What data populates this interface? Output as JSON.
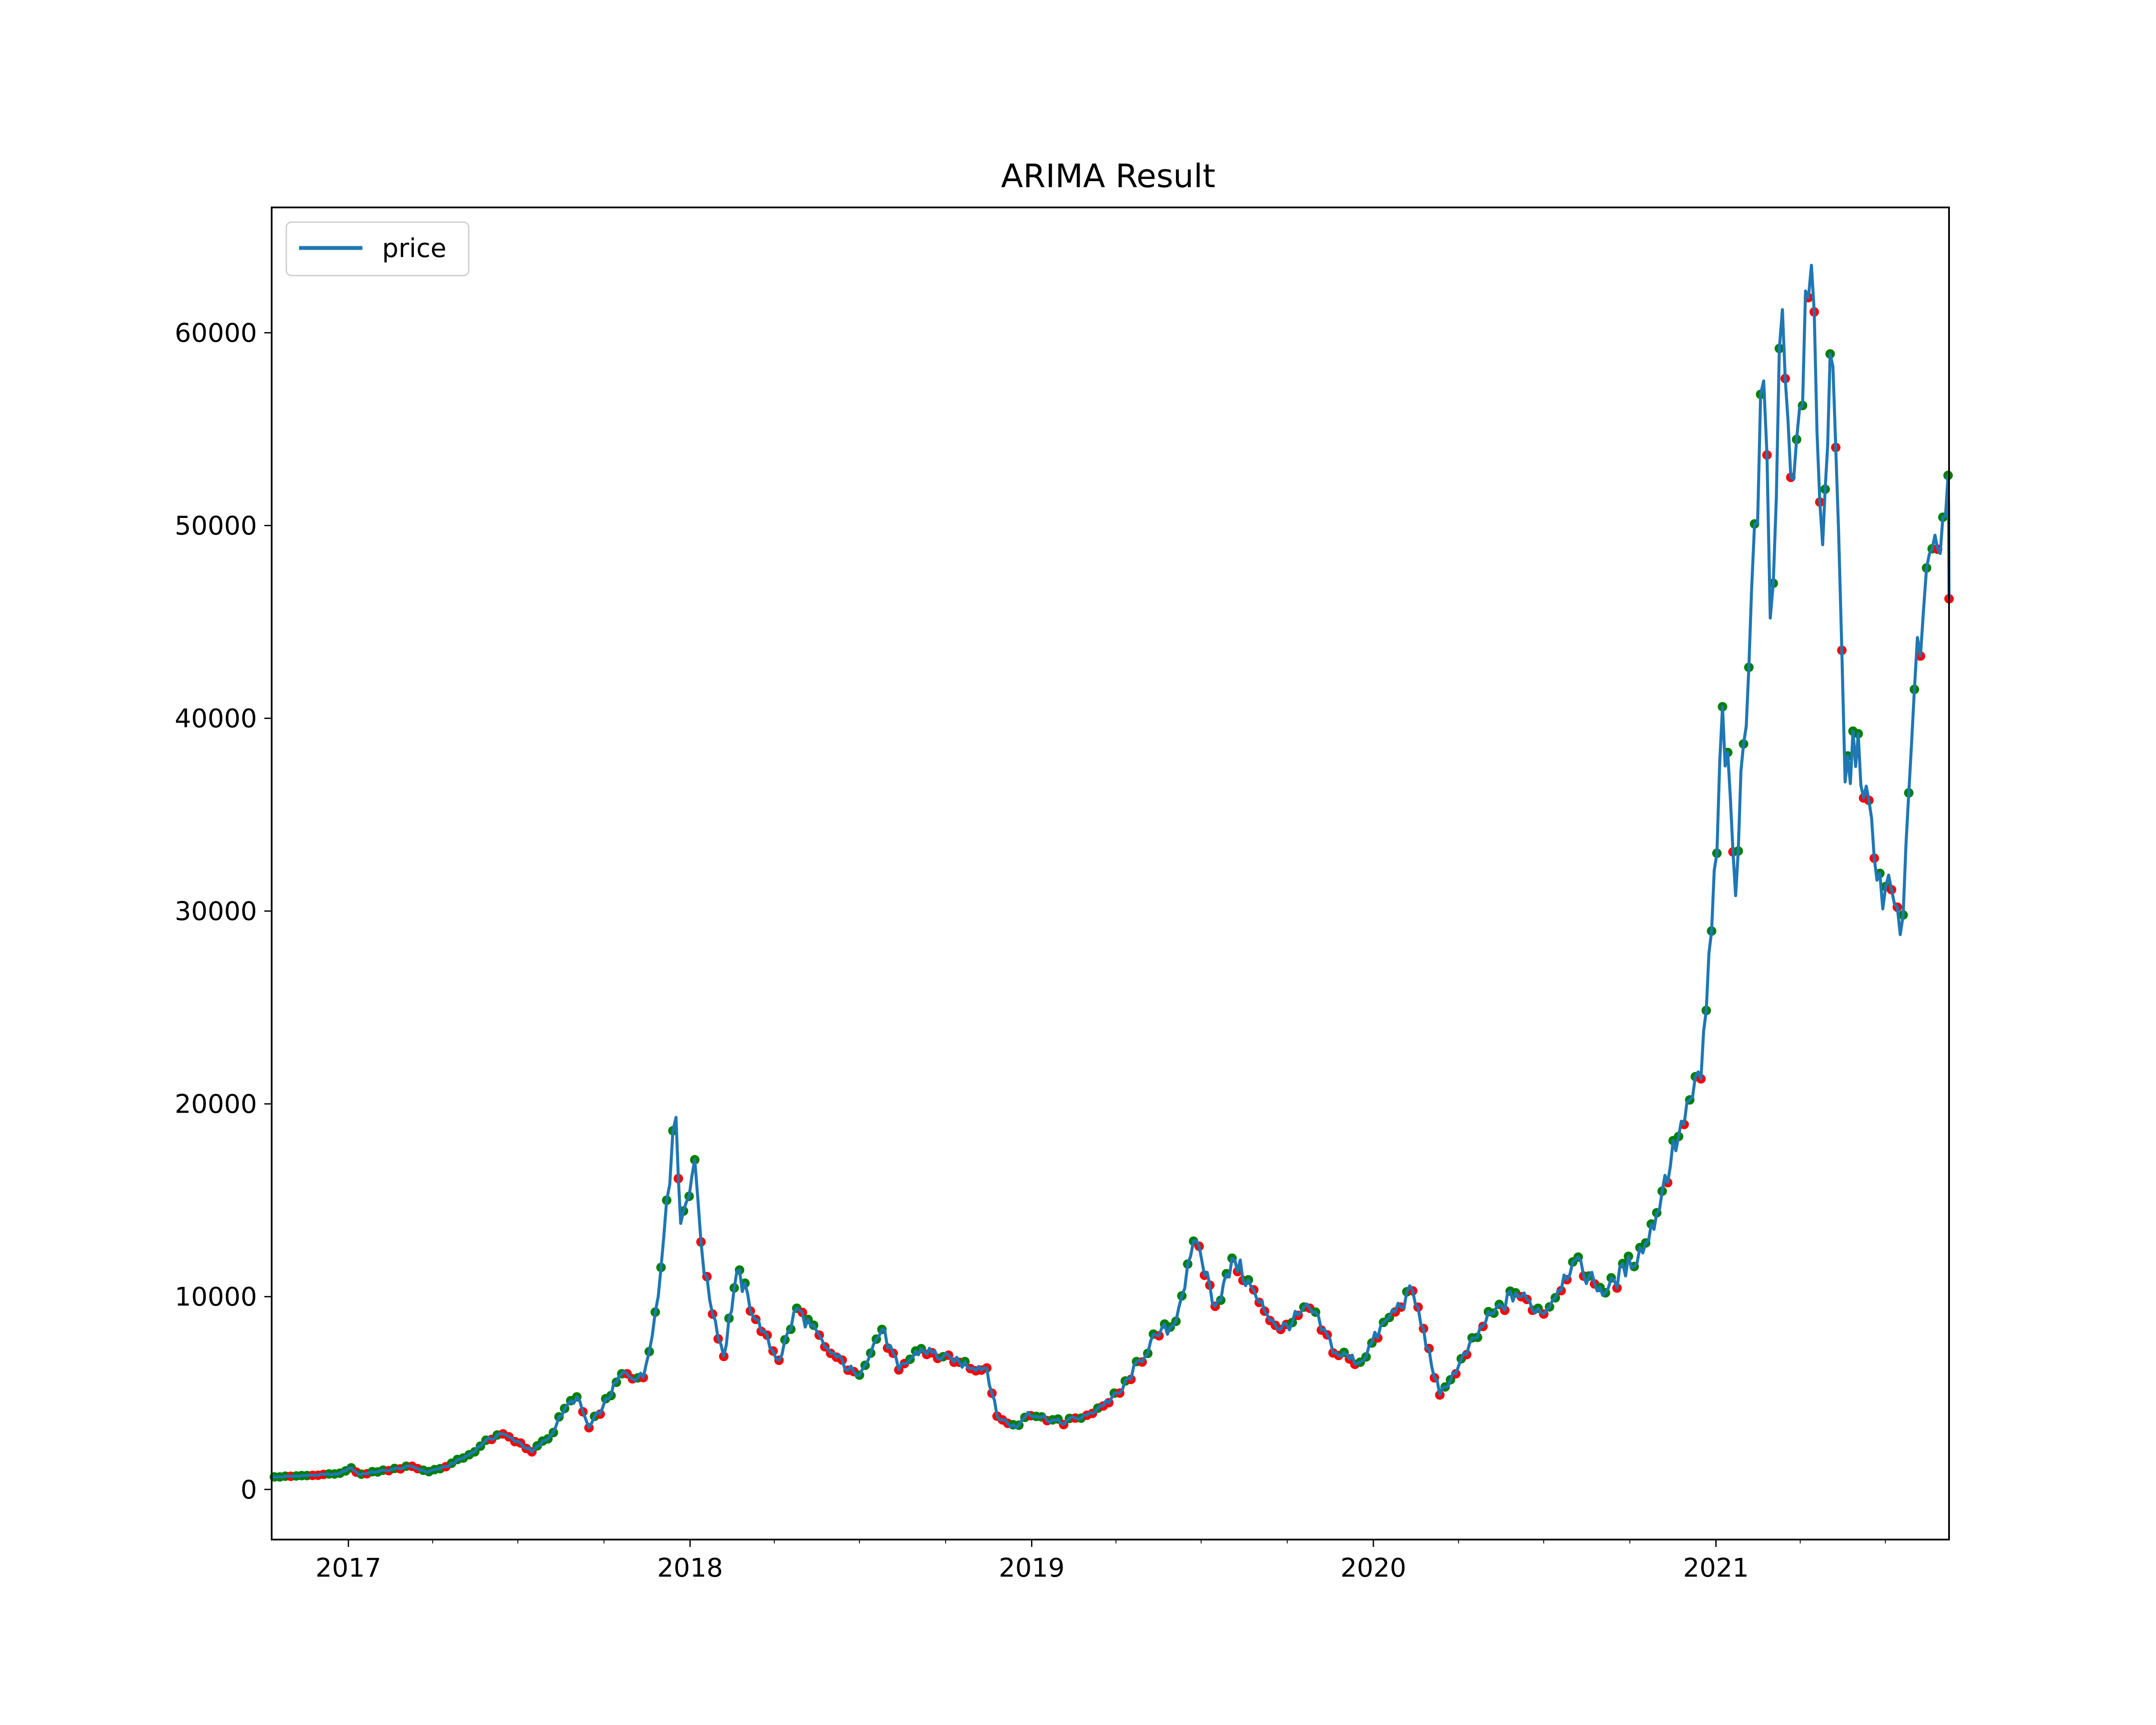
{
  "chart_data": {
    "type": "line",
    "title": "ARIMA Result",
    "xlabel": "",
    "ylabel": "",
    "x_range": [
      "2016-10-11",
      "2021-09-07"
    ],
    "ylim": [
      -2600,
      66500
    ],
    "grid": false,
    "legend": {
      "placement": "top-left",
      "entries": [
        "price"
      ]
    },
    "x_ticks": [
      {
        "date": "2017-01-01",
        "label": "2017"
      },
      {
        "date": "2018-01-01",
        "label": "2018"
      },
      {
        "date": "2019-01-01",
        "label": "2019"
      },
      {
        "date": "2020-01-01",
        "label": "2020"
      },
      {
        "date": "2021-01-01",
        "label": "2021"
      }
    ],
    "y_ticks": [
      0,
      10000,
      20000,
      30000,
      40000,
      50000,
      60000
    ],
    "colors": {
      "price": "#1f77b4",
      "up_marker": "#008000",
      "down_marker": "#ff0000"
    },
    "series": [
      {
        "name": "price",
        "points": [
          [
            "2016-10-11",
            630
          ],
          [
            "2016-11-15",
            720
          ],
          [
            "2016-12-20",
            800
          ],
          [
            "2017-01-04",
            1120
          ],
          [
            "2017-01-12",
            780
          ],
          [
            "2017-02-10",
            990
          ],
          [
            "2017-03-10",
            1200
          ],
          [
            "2017-03-25",
            900
          ],
          [
            "2017-04-15",
            1180
          ],
          [
            "2017-05-10",
            1800
          ],
          [
            "2017-05-25",
            2400
          ],
          [
            "2017-06-12",
            2900
          ],
          [
            "2017-07-01",
            2500
          ],
          [
            "2017-07-16",
            1950
          ],
          [
            "2017-08-05",
            2800
          ],
          [
            "2017-08-20",
            4200
          ],
          [
            "2017-09-02",
            4800
          ],
          [
            "2017-09-15",
            3200
          ],
          [
            "2017-09-30",
            4300
          ],
          [
            "2017-10-20",
            6000
          ],
          [
            "2017-11-12",
            5800
          ],
          [
            "2017-11-28",
            10000
          ],
          [
            "2017-12-07",
            15000
          ],
          [
            "2017-12-17",
            19300
          ],
          [
            "2017-12-22",
            13800
          ],
          [
            "2018-01-06",
            17100
          ],
          [
            "2018-01-16",
            11200
          ],
          [
            "2018-02-06",
            6900
          ],
          [
            "2018-02-20",
            11300
          ],
          [
            "2018-03-18",
            8200
          ],
          [
            "2018-04-06",
            6700
          ],
          [
            "2018-04-25",
            9400
          ],
          [
            "2018-05-25",
            7400
          ],
          [
            "2018-06-28",
            5900
          ],
          [
            "2018-07-25",
            8300
          ],
          [
            "2018-08-12",
            6200
          ],
          [
            "2018-09-05",
            7300
          ],
          [
            "2018-10-10",
            6600
          ],
          [
            "2018-11-14",
            6300
          ],
          [
            "2018-11-25",
            3800
          ],
          [
            "2018-12-15",
            3200
          ],
          [
            "2018-12-28",
            4000
          ],
          [
            "2019-02-01",
            3450
          ],
          [
            "2019-03-01",
            3850
          ],
          [
            "2019-04-05",
            5000
          ],
          [
            "2019-05-14",
            8000
          ],
          [
            "2019-06-01",
            8500
          ],
          [
            "2019-06-26",
            12900
          ],
          [
            "2019-07-16",
            9500
          ],
          [
            "2019-08-06",
            11900
          ],
          [
            "2019-09-01",
            9700
          ],
          [
            "2019-09-24",
            8300
          ],
          [
            "2019-10-25",
            9400
          ],
          [
            "2019-11-22",
            7100
          ],
          [
            "2019-12-18",
            6600
          ],
          [
            "2020-01-15",
            8800
          ],
          [
            "2020-02-12",
            10300
          ],
          [
            "2020-03-12",
            4900
          ],
          [
            "2020-04-01",
            6400
          ],
          [
            "2020-04-30",
            8700
          ],
          [
            "2020-06-01",
            10200
          ],
          [
            "2020-07-01",
            9100
          ],
          [
            "2020-08-01",
            11800
          ],
          [
            "2020-09-05",
            10200
          ],
          [
            "2020-10-21",
            12900
          ],
          [
            "2020-11-25",
            19100
          ],
          [
            "2020-12-16",
            21300
          ],
          [
            "2021-01-02",
            33000
          ],
          [
            "2021-01-08",
            40600
          ],
          [
            "2021-01-22",
            30800
          ],
          [
            "2021-02-08",
            46600
          ],
          [
            "2021-02-21",
            57500
          ],
          [
            "2021-02-28",
            45200
          ],
          [
            "2021-03-13",
            61200
          ],
          [
            "2021-03-25",
            52400
          ],
          [
            "2021-04-13",
            63500
          ],
          [
            "2021-04-25",
            49000
          ],
          [
            "2021-05-03",
            58900
          ],
          [
            "2021-05-12",
            49700
          ],
          [
            "2021-05-19",
            36700
          ],
          [
            "2021-06-02",
            39200
          ],
          [
            "2021-06-22",
            31600
          ],
          [
            "2021-07-20",
            29800
          ],
          [
            "2021-08-01",
            41500
          ],
          [
            "2021-08-14",
            47800
          ],
          [
            "2021-08-23",
            49500
          ],
          [
            "2021-09-06",
            52600
          ],
          [
            "2021-09-07",
            46200
          ]
        ]
      }
    ]
  }
}
